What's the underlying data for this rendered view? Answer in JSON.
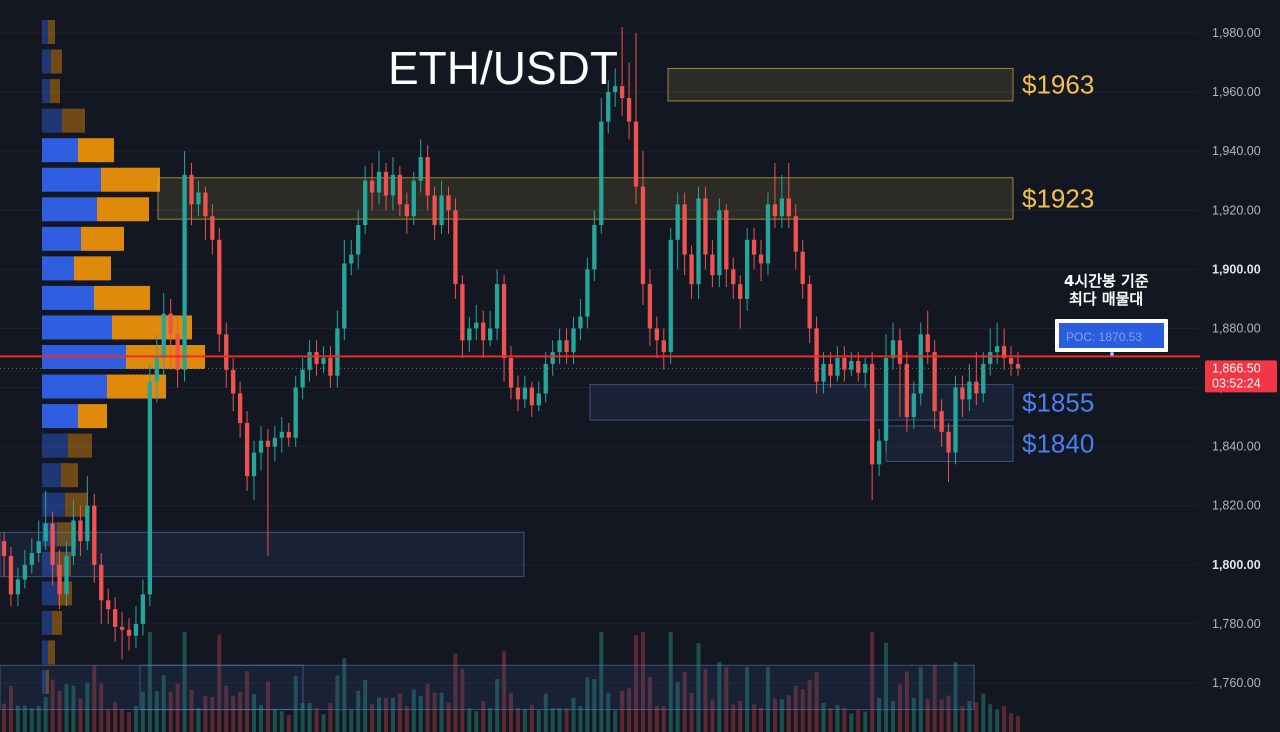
{
  "colors": {
    "background": "#131722",
    "up": "#26a69a",
    "down": "#ef5350",
    "gold": "#f5c04a",
    "blue": "#4a7ff0",
    "price_line": "#ef2a2a",
    "vp_buy": "#2f5fe0",
    "vp_sell": "#e08a0c"
  },
  "chart_data": {
    "type": "candlestick",
    "title": "ETH/USDT",
    "ylim": [
      1750,
      1985
    ],
    "y_ticks": [
      "1,760.00",
      "1,780.00",
      "1,800.00",
      "1,820.00",
      "1,840.00",
      "1,860.00",
      "1,880.00",
      "1,900.00",
      "1,920.00",
      "1,940.00",
      "1,960.00",
      "1,980.00"
    ],
    "bold_ticks": [
      "1,800.00",
      "1,900.00"
    ],
    "candles": [
      [
        1808,
        1803,
        1811,
        1796
      ],
      [
        1803,
        1790,
        1806,
        1786
      ],
      [
        1790,
        1795,
        1799,
        1786
      ],
      [
        1795,
        1800,
        1805,
        1792
      ],
      [
        1800,
        1804,
        1809,
        1797
      ],
      [
        1804,
        1808,
        1815,
        1801
      ],
      [
        1808,
        1814,
        1825,
        1805
      ],
      [
        1814,
        1800,
        1818,
        1793
      ],
      [
        1800,
        1790,
        1805,
        1785
      ],
      [
        1790,
        1803,
        1808,
        1786
      ],
      [
        1803,
        1815,
        1822,
        1800
      ],
      [
        1815,
        1808,
        1820,
        1803
      ],
      [
        1808,
        1820,
        1830,
        1805
      ],
      [
        1820,
        1800,
        1824,
        1794
      ],
      [
        1800,
        1788,
        1804,
        1780
      ],
      [
        1788,
        1785,
        1792,
        1780
      ],
      [
        1785,
        1779,
        1789,
        1774
      ],
      [
        1779,
        1778,
        1784,
        1768
      ],
      [
        1778,
        1776,
        1782,
        1771
      ],
      [
        1776,
        1780,
        1786,
        1772
      ],
      [
        1780,
        1790,
        1795,
        1776
      ],
      [
        1790,
        1862,
        1868,
        1786
      ],
      [
        1862,
        1870,
        1878,
        1855
      ],
      [
        1870,
        1885,
        1892,
        1864
      ],
      [
        1885,
        1878,
        1890,
        1866
      ],
      [
        1878,
        1866,
        1884,
        1860
      ],
      [
        1866,
        1932,
        1940,
        1862
      ],
      [
        1932,
        1922,
        1936,
        1915
      ],
      [
        1922,
        1926,
        1930,
        1918
      ],
      [
        1926,
        1918,
        1928,
        1910
      ],
      [
        1918,
        1910,
        1922,
        1905
      ],
      [
        1910,
        1878,
        1914,
        1872
      ],
      [
        1878,
        1866,
        1882,
        1860
      ],
      [
        1866,
        1858,
        1870,
        1852
      ],
      [
        1858,
        1848,
        1862,
        1843
      ],
      [
        1848,
        1830,
        1852,
        1825
      ],
      [
        1830,
        1838,
        1842,
        1822
      ],
      [
        1838,
        1842,
        1847,
        1832
      ],
      [
        1842,
        1840,
        1846,
        1803
      ],
      [
        1840,
        1843,
        1847,
        1835
      ],
      [
        1843,
        1845,
        1850,
        1838
      ],
      [
        1845,
        1843,
        1848,
        1840
      ],
      [
        1843,
        1860,
        1864,
        1840
      ],
      [
        1860,
        1866,
        1870,
        1856
      ],
      [
        1866,
        1872,
        1876,
        1862
      ],
      [
        1872,
        1868,
        1876,
        1864
      ],
      [
        1868,
        1870,
        1874,
        1865
      ],
      [
        1870,
        1864,
        1874,
        1860
      ],
      [
        1864,
        1880,
        1886,
        1860
      ],
      [
        1880,
        1902,
        1910,
        1876
      ],
      [
        1902,
        1905,
        1910,
        1898
      ],
      [
        1905,
        1915,
        1920,
        1900
      ],
      [
        1915,
        1930,
        1935,
        1912
      ],
      [
        1930,
        1926,
        1936,
        1920
      ],
      [
        1926,
        1933,
        1940,
        1922
      ],
      [
        1933,
        1925,
        1936,
        1920
      ],
      [
        1925,
        1932,
        1938,
        1920
      ],
      [
        1932,
        1922,
        1935,
        1918
      ],
      [
        1922,
        1918,
        1926,
        1912
      ],
      [
        1918,
        1930,
        1933,
        1915
      ],
      [
        1930,
        1938,
        1944,
        1926
      ],
      [
        1938,
        1925,
        1942,
        1920
      ],
      [
        1925,
        1915,
        1928,
        1910
      ],
      [
        1915,
        1925,
        1930,
        1912
      ],
      [
        1925,
        1920,
        1928,
        1912
      ],
      [
        1920,
        1895,
        1924,
        1890
      ],
      [
        1895,
        1876,
        1898,
        1870
      ],
      [
        1876,
        1880,
        1884,
        1872
      ],
      [
        1880,
        1882,
        1888,
        1876
      ],
      [
        1882,
        1876,
        1886,
        1870
      ],
      [
        1876,
        1880,
        1886,
        1874
      ],
      [
        1880,
        1895,
        1900,
        1876
      ],
      [
        1895,
        1870,
        1898,
        1862
      ],
      [
        1870,
        1860,
        1874,
        1856
      ],
      [
        1860,
        1856,
        1864,
        1852
      ],
      [
        1856,
        1860,
        1864,
        1853
      ],
      [
        1860,
        1854,
        1862,
        1850
      ],
      [
        1854,
        1858,
        1862,
        1852
      ],
      [
        1858,
        1868,
        1872,
        1855
      ],
      [
        1868,
        1872,
        1876,
        1864
      ],
      [
        1872,
        1876,
        1880,
        1868
      ],
      [
        1876,
        1872,
        1880,
        1868
      ],
      [
        1872,
        1880,
        1884,
        1868
      ],
      [
        1880,
        1884,
        1890,
        1876
      ],
      [
        1884,
        1900,
        1904,
        1880
      ],
      [
        1900,
        1915,
        1920,
        1896
      ],
      [
        1915,
        1950,
        1958,
        1912
      ],
      [
        1950,
        1960,
        1964,
        1946
      ],
      [
        1960,
        1962,
        1968,
        1955
      ],
      [
        1962,
        1958,
        1982,
        1952
      ],
      [
        1958,
        1950,
        1970,
        1944
      ],
      [
        1950,
        1928,
        1980,
        1922
      ],
      [
        1928,
        1895,
        1940,
        1888
      ],
      [
        1895,
        1880,
        1900,
        1874
      ],
      [
        1880,
        1876,
        1884,
        1870
      ],
      [
        1876,
        1872,
        1880,
        1866
      ],
      [
        1872,
        1910,
        1914,
        1868
      ],
      [
        1910,
        1922,
        1926,
        1900
      ],
      [
        1922,
        1905,
        1926,
        1898
      ],
      [
        1905,
        1895,
        1908,
        1890
      ],
      [
        1895,
        1924,
        1928,
        1890
      ],
      [
        1924,
        1905,
        1928,
        1900
      ],
      [
        1905,
        1898,
        1910,
        1894
      ],
      [
        1898,
        1920,
        1924,
        1894
      ],
      [
        1920,
        1900,
        1922,
        1894
      ],
      [
        1900,
        1895,
        1904,
        1890
      ],
      [
        1895,
        1890,
        1898,
        1880
      ],
      [
        1890,
        1910,
        1914,
        1886
      ],
      [
        1910,
        1905,
        1914,
        1900
      ],
      [
        1905,
        1902,
        1910,
        1896
      ],
      [
        1902,
        1922,
        1926,
        1898
      ],
      [
        1922,
        1918,
        1936,
        1914
      ],
      [
        1918,
        1924,
        1932,
        1914
      ],
      [
        1924,
        1918,
        1936,
        1914
      ],
      [
        1918,
        1906,
        1922,
        1900
      ],
      [
        1906,
        1895,
        1910,
        1890
      ],
      [
        1895,
        1880,
        1898,
        1875
      ],
      [
        1880,
        1862,
        1884,
        1858
      ],
      [
        1862,
        1868,
        1872,
        1858
      ],
      [
        1868,
        1864,
        1872,
        1860
      ],
      [
        1864,
        1870,
        1874,
        1862
      ],
      [
        1870,
        1866,
        1874,
        1862
      ],
      [
        1866,
        1869,
        1872,
        1864
      ],
      [
        1869,
        1865,
        1872,
        1862
      ],
      [
        1865,
        1868,
        1870,
        1860
      ],
      [
        1868,
        1834,
        1872,
        1822
      ],
      [
        1834,
        1842,
        1846,
        1830
      ],
      [
        1842,
        1870,
        1878,
        1838
      ],
      [
        1870,
        1876,
        1882,
        1866
      ],
      [
        1876,
        1868,
        1880,
        1850
      ],
      [
        1868,
        1850,
        1872,
        1845
      ],
      [
        1850,
        1858,
        1862,
        1846
      ],
      [
        1858,
        1878,
        1882,
        1854
      ],
      [
        1878,
        1872,
        1886,
        1868
      ],
      [
        1872,
        1852,
        1876,
        1846
      ],
      [
        1852,
        1845,
        1856,
        1840
      ],
      [
        1845,
        1838,
        1848,
        1828
      ],
      [
        1838,
        1860,
        1864,
        1834
      ],
      [
        1860,
        1856,
        1864,
        1850
      ],
      [
        1856,
        1862,
        1868,
        1852
      ],
      [
        1862,
        1858,
        1872,
        1854
      ],
      [
        1858,
        1868,
        1872,
        1855
      ],
      [
        1868,
        1872,
        1880,
        1864
      ],
      [
        1872,
        1874,
        1882,
        1868
      ],
      [
        1874,
        1870,
        1880,
        1866
      ],
      [
        1870,
        1868,
        1874,
        1864
      ],
      [
        1868,
        1866.5,
        1872,
        1864
      ]
    ],
    "volume_profile": [
      {
        "price": 1980,
        "buy": 12,
        "sell": 14,
        "dim": true
      },
      {
        "price": 1970,
        "buy": 18,
        "sell": 22,
        "dim": true
      },
      {
        "price": 1960,
        "buy": 16,
        "sell": 20,
        "dim": true
      },
      {
        "price": 1950,
        "buy": 40,
        "sell": 46,
        "dim": true
      },
      {
        "price": 1940,
        "buy": 72,
        "sell": 72
      },
      {
        "price": 1930,
        "buy": 118,
        "sell": 118
      },
      {
        "price": 1920,
        "buy": 110,
        "sell": 104
      },
      {
        "price": 1910,
        "buy": 78,
        "sell": 86
      },
      {
        "price": 1900,
        "buy": 64,
        "sell": 74
      },
      {
        "price": 1890,
        "buy": 104,
        "sell": 112
      },
      {
        "price": 1880,
        "buy": 140,
        "sell": 160
      },
      {
        "price": 1870,
        "buy": 168,
        "sell": 158,
        "poc": true
      },
      {
        "price": 1860,
        "buy": 130,
        "sell": 118
      },
      {
        "price": 1850,
        "buy": 72,
        "sell": 58
      },
      {
        "price": 1840,
        "buy": 52,
        "sell": 48,
        "dim": true
      },
      {
        "price": 1830,
        "buy": 38,
        "sell": 34,
        "dim": true
      },
      {
        "price": 1820,
        "buy": 46,
        "sell": 46,
        "dim": true
      },
      {
        "price": 1810,
        "buy": 30,
        "sell": 38,
        "dim": true
      },
      {
        "price": 1800,
        "buy": 28,
        "sell": 30,
        "dim": true
      },
      {
        "price": 1790,
        "buy": 32,
        "sell": 28,
        "dim": true
      },
      {
        "price": 1780,
        "buy": 20,
        "sell": 20,
        "dim": true
      },
      {
        "price": 1770,
        "buy": 12,
        "sell": 14,
        "dim": true
      },
      {
        "price": 1760,
        "buy": 8,
        "sell": 6,
        "dim": true
      }
    ],
    "zones": [
      {
        "top": 1968,
        "bottom": 1957,
        "color": "gold",
        "label": "$1963"
      },
      {
        "top": 1931,
        "bottom": 1917,
        "color": "gold",
        "label": "$1923"
      },
      {
        "top": 1861,
        "bottom": 1849,
        "color": "blue",
        "label": "$1855"
      },
      {
        "top": 1847,
        "bottom": 1835,
        "color": "blue",
        "label": "$1840"
      },
      {
        "top": 1811,
        "bottom": 1796,
        "color": "blue",
        "label": ""
      },
      {
        "top": 1766,
        "bottom": 1751,
        "color": "blue",
        "label": ""
      }
    ],
    "current_price": 1866.5,
    "poc_price": 1870.53
  },
  "labels": {
    "title": "ETH/USDT",
    "note_line1": "4시간봉 기준",
    "note_line2": "최다 매물대",
    "poc": "POC: 1870.53",
    "price_tag": "1,866.50",
    "countdown": "03:52:24"
  }
}
